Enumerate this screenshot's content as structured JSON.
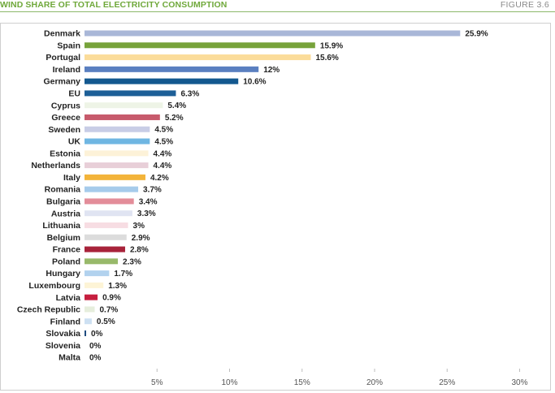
{
  "header": {
    "title": "WIND SHARE OF TOTAL ELECTRICITY CONSUMPTION",
    "figure": "FIGURE 3.6"
  },
  "chart_data": {
    "type": "bar",
    "orientation": "horizontal",
    "title": "WIND SHARE OF TOTAL ELECTRICITY CONSUMPTION",
    "xlabel": "",
    "ylabel": "",
    "xlim": [
      0,
      30
    ],
    "x_ticks": [
      5,
      10,
      15,
      20,
      25,
      30
    ],
    "x_tick_labels": [
      "5%",
      "10%",
      "15%",
      "20%",
      "25%",
      "30%"
    ],
    "grid": false,
    "categories": [
      "Denmark",
      "Spain",
      "Portugal",
      "Ireland",
      "Germany",
      "EU",
      "Cyprus",
      "Greece",
      "Sweden",
      "UK",
      "Estonia",
      "Netherlands",
      "Italy",
      "Romania",
      "Bulgaria",
      "Austria",
      "Lithuania",
      "Belgium",
      "France",
      "Poland",
      "Hungary",
      "Luxembourg",
      "Latvia",
      "Czech Republic",
      "Finland",
      "Slovakia",
      "Slovenia",
      "Malta"
    ],
    "values": [
      25.9,
      15.9,
      15.6,
      12,
      10.6,
      6.3,
      5.4,
      5.2,
      4.5,
      4.5,
      4.4,
      4.4,
      4.2,
      3.7,
      3.4,
      3.3,
      3,
      2.9,
      2.8,
      2.3,
      1.7,
      1.3,
      0.9,
      0.7,
      0.5,
      0,
      0,
      0
    ],
    "value_labels": [
      "25.9%",
      "15.9%",
      "15.6%",
      "12%",
      "10.6%",
      "6.3%",
      "5.4%",
      "5.2%",
      "4.5%",
      "4.5%",
      "4.4%",
      "4.4%",
      "4.2%",
      "3.7%",
      "3.4%",
      "3.3%",
      "3%",
      "2.9%",
      "2.8%",
      "2.3%",
      "1.7%",
      "1.3%",
      "0.9%",
      "0.7%",
      "0.5%",
      "0%",
      "0%",
      "0%"
    ],
    "colors": [
      "#a9b7d8",
      "#77a33b",
      "#fbdc9a",
      "#5a7fc0",
      "#13588f",
      "#1d5f97",
      "#eef4e6",
      "#c75a6c",
      "#c8cde6",
      "#6fb6e2",
      "#fdf2d8",
      "#e8cfd8",
      "#f3b43a",
      "#a6cbeb",
      "#e38d99",
      "#e0e4f2",
      "#f7dde3",
      "#dcdcdc",
      "#a8233a",
      "#98b96a",
      "#b2d2ee",
      "#fdf4d6",
      "#c61f3f",
      "#e6eedc",
      "#cde0f2",
      "#1f4c80",
      "#ffffff",
      "#ffffff"
    ]
  }
}
